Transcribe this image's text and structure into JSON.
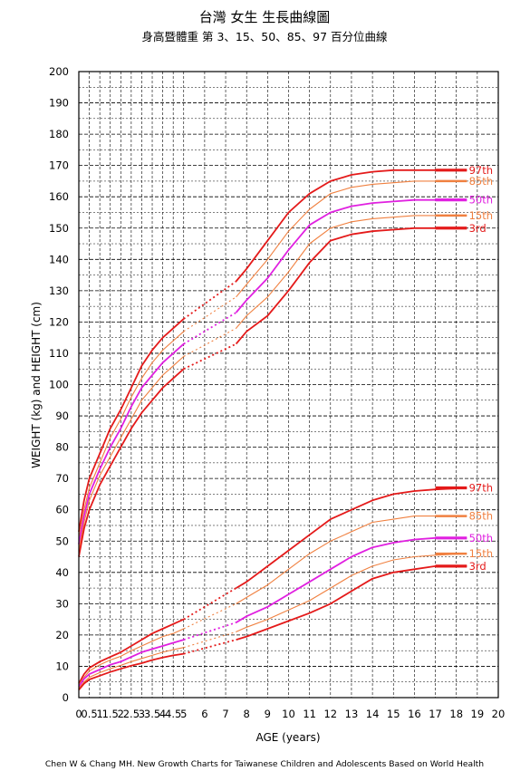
{
  "header": {
    "title": "台灣 女生 生長曲線圖",
    "subtitle": "身高暨體重 第 3、15、50、85、97 百分位曲線"
  },
  "footer": {
    "source": "Chen W & Chang MH. New Growth Charts for Taiwanese Children and Adolescents Based on World Health"
  },
  "chart_data": {
    "type": "line",
    "title": "台灣 女生 生長曲線圖",
    "subtitle": "身高暨體重 第 3、15、50、85、97 百分位曲線",
    "xlabel": "AGE (years)",
    "ylabel": "WEIGHT (kg) and HEIGHT (cm)",
    "xlim": [
      0,
      20
    ],
    "ylim": [
      0,
      200
    ],
    "x_ticks": [
      "0",
      "0.5",
      "1",
      "1.5",
      "2",
      "2.5",
      "3",
      "3.5",
      "4",
      "4.5",
      "5",
      "6",
      "7",
      "8",
      "9",
      "10",
      "11",
      "12",
      "13",
      "14",
      "15",
      "16",
      "17",
      "18",
      "19",
      "20"
    ],
    "x_tick_values": [
      0,
      0.5,
      1,
      1.5,
      2,
      2.5,
      3,
      3.5,
      4,
      4.5,
      5,
      6,
      7,
      8,
      9,
      10,
      11,
      12,
      13,
      14,
      15,
      16,
      17,
      18,
      19,
      20
    ],
    "y_ticks": [
      "0",
      "10",
      "20",
      "30",
      "40",
      "50",
      "60",
      "70",
      "80",
      "90",
      "100",
      "110",
      "120",
      "130",
      "140",
      "150",
      "160",
      "170",
      "180",
      "190",
      "200"
    ],
    "y_tick_values": [
      0,
      10,
      20,
      30,
      40,
      50,
      60,
      70,
      80,
      90,
      100,
      110,
      120,
      130,
      140,
      150,
      160,
      170,
      180,
      190,
      200
    ],
    "grid": true,
    "colors": {
      "3rd": "#e41a1a",
      "15th": "#f08040",
      "50th": "#e020e0",
      "85th": "#f08040",
      "97th": "#e41a1a"
    },
    "height_series": [
      {
        "name": "97th",
        "x": [
          0,
          0.25,
          0.5,
          1,
          1.5,
          2,
          2.5,
          3,
          3.5,
          4,
          4.5,
          5,
          7.5,
          8,
          9,
          10,
          11,
          12,
          13,
          14,
          15,
          16,
          17,
          18.5
        ],
        "y": [
          53,
          63,
          70,
          78,
          86,
          92,
          99,
          106,
          111,
          115,
          118,
          121,
          133,
          137,
          146,
          155,
          161,
          165,
          167,
          168,
          168.5,
          168.5,
          168.5,
          168.5
        ]
      },
      {
        "name": "85th",
        "x": [
          0,
          0.25,
          0.5,
          1,
          1.5,
          2,
          2.5,
          3,
          3.5,
          4,
          4.5,
          5,
          7.5,
          8,
          9,
          10,
          11,
          12,
          13,
          14,
          15,
          16,
          17,
          18.5
        ],
        "y": [
          51,
          60,
          67,
          75,
          83,
          89,
          96,
          102,
          107,
          111,
          114,
          117,
          128,
          132,
          140,
          149,
          156,
          161,
          163,
          164,
          164.5,
          165,
          165,
          165
        ]
      },
      {
        "name": "50th",
        "x": [
          0,
          0.25,
          0.5,
          1,
          1.5,
          2,
          2.5,
          3,
          3.5,
          4,
          4.5,
          5,
          7.5,
          8,
          9,
          10,
          11,
          12,
          13,
          14,
          15,
          16,
          17,
          18.5
        ],
        "y": [
          49,
          58,
          65,
          73,
          80,
          86,
          93,
          99,
          103,
          107,
          110,
          113,
          123,
          127,
          134,
          143,
          151,
          155,
          157,
          158,
          158.5,
          159,
          159,
          159
        ]
      },
      {
        "name": "15th",
        "x": [
          0,
          0.25,
          0.5,
          1,
          1.5,
          2,
          2.5,
          3,
          3.5,
          4,
          4.5,
          5,
          7.5,
          8,
          9,
          10,
          11,
          12,
          13,
          14,
          15,
          16,
          17,
          18.5
        ],
        "y": [
          47,
          56,
          63,
          71,
          77,
          83,
          89,
          95,
          99,
          103,
          106,
          109,
          118,
          122,
          128,
          136,
          145,
          150,
          152,
          153,
          153.5,
          154,
          154,
          154
        ]
      },
      {
        "name": "3rd",
        "x": [
          0,
          0.25,
          0.5,
          1,
          1.5,
          2,
          2.5,
          3,
          3.5,
          4,
          4.5,
          5,
          7.5,
          8,
          9,
          10,
          11,
          12,
          13,
          14,
          15,
          16,
          17,
          18.5
        ],
        "y": [
          45,
          54,
          60,
          68,
          74,
          80,
          86,
          91,
          95,
          99,
          102,
          105,
          113,
          117,
          122,
          130,
          139,
          146,
          148,
          149,
          149.5,
          150,
          150,
          150
        ]
      }
    ],
    "weight_series": [
      {
        "name": "97th",
        "x": [
          0,
          0.25,
          0.5,
          1,
          1.5,
          2,
          2.5,
          3,
          3.5,
          4,
          4.5,
          5,
          7.5,
          8,
          9,
          10,
          11,
          12,
          13,
          14,
          15,
          16,
          17,
          18.5
        ],
        "y": [
          4.5,
          7.5,
          9.5,
          11.5,
          13,
          14.5,
          16.5,
          18.5,
          20.5,
          22,
          23.5,
          25,
          35,
          37,
          42,
          47,
          52,
          57,
          60,
          63,
          65,
          66,
          66.5,
          67
        ]
      },
      {
        "name": "85th",
        "x": [
          0,
          0.25,
          0.5,
          1,
          1.5,
          2,
          2.5,
          3,
          3.5,
          4,
          4.5,
          5,
          7.5,
          8,
          9,
          10,
          11,
          12,
          13,
          14,
          15,
          16,
          17,
          18.5
        ],
        "y": [
          4,
          6.5,
          8.5,
          10.5,
          12,
          13.2,
          15,
          16.5,
          18,
          19.5,
          20.5,
          22,
          30,
          32,
          36,
          41,
          46,
          50,
          53,
          56,
          57,
          58,
          58,
          58
        ]
      },
      {
        "name": "50th",
        "x": [
          0,
          0.25,
          0.5,
          1,
          1.5,
          2,
          2.5,
          3,
          3.5,
          4,
          4.5,
          5,
          7.5,
          8,
          9,
          10,
          11,
          12,
          13,
          14,
          15,
          16,
          17,
          18.5
        ],
        "y": [
          3.5,
          6,
          7.5,
          9,
          10.5,
          11.5,
          13,
          14.5,
          15.5,
          16.5,
          17.5,
          18.5,
          24,
          26,
          29,
          33,
          37,
          41,
          45,
          48,
          49.5,
          50.5,
          51,
          51
        ]
      },
      {
        "name": "15th",
        "x": [
          0,
          0.25,
          0.5,
          1,
          1.5,
          2,
          2.5,
          3,
          3.5,
          4,
          4.5,
          5,
          7.5,
          8,
          9,
          10,
          11,
          12,
          13,
          14,
          15,
          16,
          17,
          18.5
        ],
        "y": [
          3,
          5,
          6.5,
          8,
          9.2,
          10.3,
          11.5,
          12.5,
          13.5,
          14.5,
          15.3,
          16,
          21,
          22.5,
          25,
          28,
          31,
          35,
          39,
          42,
          44,
          45,
          45.5,
          46
        ]
      },
      {
        "name": "3rd",
        "x": [
          0,
          0.25,
          0.5,
          1,
          1.5,
          2,
          2.5,
          3,
          3.5,
          4,
          4.5,
          5,
          7.5,
          8,
          9,
          10,
          11,
          12,
          13,
          14,
          15,
          16,
          17,
          18.5
        ],
        "y": [
          2.5,
          4.5,
          5.8,
          7,
          8.2,
          9.2,
          10.2,
          11,
          12,
          12.8,
          13.5,
          14,
          18.5,
          19.5,
          22,
          24.5,
          27,
          30,
          34,
          38,
          40,
          41,
          42,
          42
        ]
      }
    ],
    "end_labels": {
      "height": [
        "97th",
        "85th",
        "50th",
        "15th",
        "3rd"
      ],
      "weight": [
        "97th",
        "85th",
        "50th",
        "15th",
        "3rd"
      ]
    }
  }
}
